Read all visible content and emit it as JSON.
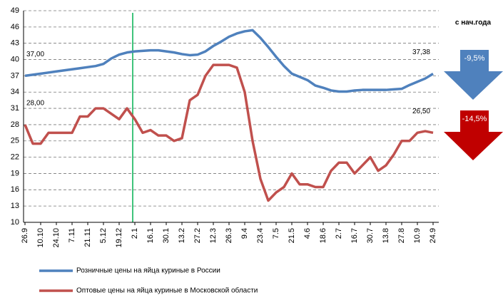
{
  "chart_data": {
    "type": "line",
    "categories": [
      "26.9",
      null,
      "10.10",
      null,
      "24.10",
      null,
      "7.11",
      null,
      "21.11",
      null,
      "5.12",
      null,
      "19.12",
      null,
      "2.1",
      null,
      "16.1",
      null,
      "30.1",
      null,
      "13.2",
      null,
      "27.2",
      null,
      "12.3",
      null,
      "26.3",
      null,
      "9.4",
      null,
      "23.4",
      null,
      "7.5",
      null,
      "21.5",
      null,
      "4.6",
      null,
      "18.6",
      null,
      "2.7",
      null,
      "16.7",
      null,
      "30.7",
      null,
      "13.8",
      null,
      "27.8",
      null,
      "10.9",
      null,
      "24.9"
    ],
    "series": [
      {
        "name": "Розничные цены на яйца куриные в России",
        "color": "#4f81bd",
        "values": [
          37.0,
          37.2,
          37.4,
          37.6,
          37.8,
          38.0,
          38.2,
          38.4,
          38.6,
          38.8,
          39.2,
          40.2,
          40.9,
          41.3,
          41.5,
          41.6,
          41.7,
          41.7,
          41.5,
          41.3,
          41.0,
          40.8,
          40.9,
          41.5,
          42.5,
          43.3,
          44.2,
          44.8,
          45.2,
          45.4,
          44.0,
          42.3,
          40.5,
          38.8,
          37.4,
          36.8,
          36.2,
          35.2,
          34.8,
          34.3,
          34.1,
          34.1,
          34.3,
          34.4,
          34.4,
          34.4,
          34.4,
          34.5,
          34.6,
          35.3,
          35.9,
          36.5,
          37.38
        ],
        "value_labels": {
          "0": "37,00",
          "52": "37,38"
        }
      },
      {
        "name": "Оптовые цены на яйца куриные в Московской области",
        "color": "#c0504d",
        "values": [
          28.0,
          24.5,
          24.5,
          26.5,
          26.5,
          26.5,
          26.5,
          29.5,
          29.5,
          31,
          31,
          30,
          29,
          31,
          29,
          26.5,
          27,
          26,
          26,
          25,
          25.5,
          32.5,
          33.5,
          37,
          39,
          39,
          39,
          38.5,
          34,
          25,
          18,
          14,
          15.5,
          16.5,
          19,
          17,
          17,
          16.5,
          16.5,
          19.5,
          21,
          21,
          19,
          20.5,
          22,
          19.5,
          20.5,
          22.5,
          25,
          25,
          26.5,
          26.8,
          26.5
        ],
        "value_labels": {
          "0": "28,00",
          "52": "26,50"
        }
      }
    ],
    "ylim": [
      10,
      49
    ],
    "yticks": [
      10,
      13,
      16,
      19,
      22,
      25,
      28,
      31,
      34,
      37,
      40,
      43,
      46,
      49
    ],
    "grid": true,
    "annotations": {
      "title": "с нач.года",
      "changes": [
        {
          "label": "-9,5%",
          "color": "#4f81bd"
        },
        {
          "label": "-14,5%",
          "color": "#c00000"
        }
      ]
    }
  }
}
